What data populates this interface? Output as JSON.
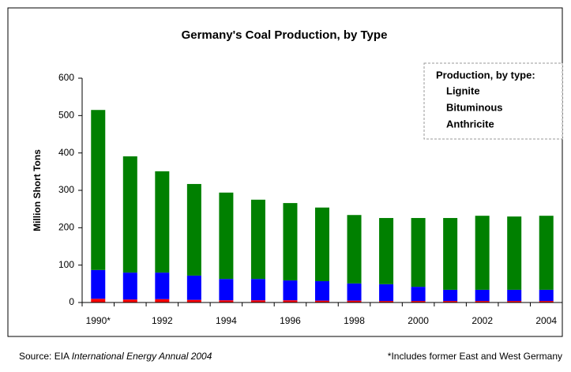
{
  "chart_data": {
    "type": "stacked_bar",
    "title": "Germany's Coal Production, by Type",
    "y_label": "Million Short Tons",
    "categories": [
      "1990*",
      null,
      "1992",
      null,
      "1994",
      null,
      "1996",
      null,
      "1998",
      null,
      "2000",
      null,
      "2002",
      null,
      "2004"
    ],
    "series": [
      {
        "name": "Anthricite",
        "color": "#ff0000",
        "values": [
          10,
          8,
          9,
          7,
          6,
          6,
          6,
          5,
          5,
          4,
          4,
          4,
          4,
          4,
          4
        ]
      },
      {
        "name": "Bituminous",
        "color": "#0000ff",
        "values": [
          77,
          72,
          71,
          65,
          57,
          57,
          53,
          52,
          46,
          45,
          38,
          30,
          30,
          30,
          30
        ]
      },
      {
        "name": "Lignite",
        "color": "#008000",
        "values": [
          428,
          311,
          271,
          245,
          231,
          212,
          207,
          197,
          183,
          177,
          184,
          192,
          198,
          196,
          198
        ]
      }
    ],
    "legend_title": "Production, by type:",
    "legend": "top-right",
    "ylim": [
      0,
      600
    ],
    "yticks": [
      0,
      100,
      200,
      300,
      400,
      500,
      600
    ],
    "source": {
      "prefix": "Source: EIA ",
      "italic": "International Energy Annual 2004"
    },
    "footnote": "*Includes former East and West Germany"
  }
}
